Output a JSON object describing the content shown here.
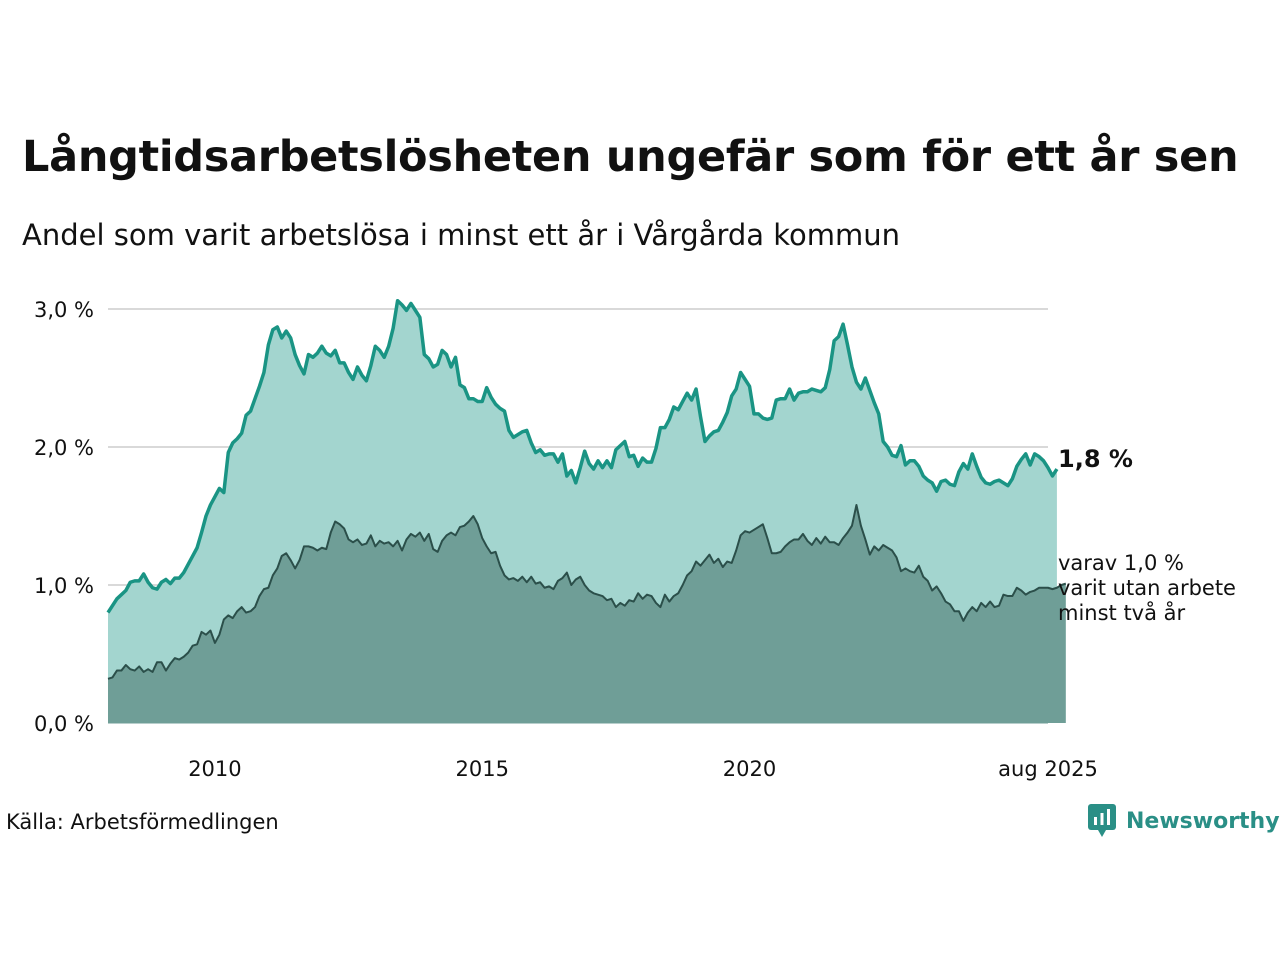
{
  "title": "Långtidsarbetslösheten ungefär som för ett år sen",
  "subtitle": "Andel som varit arbetslösa i minst ett år i Vårgårda kommun",
  "source": "Källa: Arbetsförmedlingen",
  "brand": "Newsworthy",
  "colors": {
    "main_line": "#1a9484",
    "main_fill": "#a3d5cf",
    "sub_line": "#2b4f4a",
    "sub_fill": "#6f9e97",
    "grid": "#d9d9d9"
  },
  "chart_data": {
    "type": "area",
    "x_start": "2008-01",
    "x_end": "2025-08",
    "x_step": "month",
    "ylim": [
      0,
      3
    ],
    "y_ticks": [
      0,
      1,
      2,
      3
    ],
    "y_tick_labels": [
      "0,0 %",
      "1,0 %",
      "2,0 %",
      "3,0 %"
    ],
    "x_ticks": [
      "2010-01",
      "2015-01",
      "2020-01",
      "2025-08"
    ],
    "x_tick_labels": [
      "2010",
      "2015",
      "2020",
      "aug 2025"
    ],
    "grid": true,
    "series": [
      {
        "key": "total",
        "end_label": "1,8 %",
        "values": [
          0.8,
          0.85,
          0.9,
          0.93,
          0.96,
          1.02,
          1.03,
          1.03,
          1.08,
          1.02,
          0.98,
          0.97,
          1.02,
          1.04,
          1.01,
          1.05,
          1.05,
          1.09,
          1.15,
          1.21,
          1.27,
          1.38,
          1.5,
          1.58,
          1.64,
          1.7,
          1.67,
          1.96,
          2.03,
          2.06,
          2.1,
          2.23,
          2.26,
          2.35,
          2.44,
          2.54,
          2.74,
          2.85,
          2.87,
          2.79,
          2.84,
          2.79,
          2.67,
          2.59,
          2.53,
          2.67,
          2.65,
          2.68,
          2.73,
          2.68,
          2.66,
          2.7,
          2.61,
          2.61,
          2.54,
          2.49,
          2.58,
          2.52,
          2.48,
          2.59,
          2.73,
          2.7,
          2.65,
          2.73,
          2.86,
          3.06,
          3.03,
          2.99,
          3.04,
          2.99,
          2.94,
          2.67,
          2.64,
          2.58,
          2.6,
          2.7,
          2.67,
          2.58,
          2.65,
          2.45,
          2.43,
          2.35,
          2.35,
          2.33,
          2.33,
          2.43,
          2.36,
          2.31,
          2.28,
          2.26,
          2.12,
          2.07,
          2.09,
          2.11,
          2.12,
          2.03,
          1.96,
          1.98,
          1.94,
          1.95,
          1.95,
          1.89,
          1.95,
          1.79,
          1.83,
          1.74,
          1.85,
          1.97,
          1.88,
          1.84,
          1.9,
          1.85,
          1.9,
          1.85,
          1.98,
          2.01,
          2.04,
          1.93,
          1.94,
          1.86,
          1.92,
          1.89,
          1.89,
          1.99,
          2.14,
          2.14,
          2.2,
          2.29,
          2.27,
          2.33,
          2.39,
          2.34,
          2.42,
          2.22,
          2.04,
          2.08,
          2.11,
          2.12,
          2.18,
          2.25,
          2.37,
          2.42,
          2.54,
          2.49,
          2.44,
          2.24,
          2.24,
          2.21,
          2.2,
          2.21,
          2.34,
          2.35,
          2.35,
          2.42,
          2.34,
          2.39,
          2.4,
          2.4,
          2.42,
          2.41,
          2.4,
          2.43,
          2.56,
          2.77,
          2.8,
          2.89,
          2.74,
          2.58,
          2.47,
          2.42,
          2.5,
          2.41,
          2.32,
          2.24,
          2.04,
          2.0,
          1.94,
          1.93,
          2.01,
          1.87,
          1.9,
          1.9,
          1.86,
          1.79,
          1.76,
          1.74,
          1.68,
          1.75,
          1.76,
          1.73,
          1.72,
          1.82,
          1.88,
          1.84,
          1.95,
          1.86,
          1.78,
          1.74,
          1.73,
          1.75,
          1.76,
          1.74,
          1.72,
          1.77,
          1.86,
          1.91,
          1.95,
          1.87,
          1.95,
          1.93,
          1.9,
          1.85,
          1.79,
          1.84
        ]
      },
      {
        "key": "two_years",
        "end_label": [
          "varav 1,0 %",
          "varit utan arbete",
          "minst två år"
        ],
        "values": [
          0.32,
          0.33,
          0.38,
          0.38,
          0.42,
          0.39,
          0.38,
          0.41,
          0.37,
          0.39,
          0.37,
          0.44,
          0.44,
          0.38,
          0.43,
          0.47,
          0.46,
          0.48,
          0.51,
          0.56,
          0.57,
          0.66,
          0.64,
          0.67,
          0.58,
          0.64,
          0.75,
          0.78,
          0.76,
          0.81,
          0.84,
          0.8,
          0.81,
          0.84,
          0.92,
          0.97,
          0.98,
          1.07,
          1.12,
          1.21,
          1.23,
          1.18,
          1.12,
          1.18,
          1.28,
          1.28,
          1.27,
          1.25,
          1.27,
          1.26,
          1.38,
          1.46,
          1.44,
          1.41,
          1.33,
          1.31,
          1.33,
          1.29,
          1.3,
          1.36,
          1.28,
          1.32,
          1.3,
          1.31,
          1.28,
          1.32,
          1.25,
          1.33,
          1.37,
          1.35,
          1.38,
          1.32,
          1.37,
          1.26,
          1.24,
          1.32,
          1.36,
          1.38,
          1.36,
          1.42,
          1.43,
          1.46,
          1.5,
          1.44,
          1.34,
          1.28,
          1.23,
          1.24,
          1.14,
          1.07,
          1.04,
          1.05,
          1.03,
          1.06,
          1.02,
          1.06,
          1.01,
          1.02,
          0.98,
          0.99,
          0.97,
          1.03,
          1.05,
          1.09,
          1.0,
          1.04,
          1.06,
          1.0,
          0.96,
          0.94,
          0.93,
          0.92,
          0.89,
          0.9,
          0.84,
          0.87,
          0.85,
          0.89,
          0.88,
          0.94,
          0.9,
          0.93,
          0.92,
          0.87,
          0.84,
          0.93,
          0.88,
          0.92,
          0.94,
          1.0,
          1.07,
          1.1,
          1.17,
          1.14,
          1.18,
          1.22,
          1.16,
          1.19,
          1.13,
          1.17,
          1.16,
          1.25,
          1.36,
          1.39,
          1.38,
          1.4,
          1.42,
          1.44,
          1.34,
          1.23,
          1.23,
          1.24,
          1.28,
          1.31,
          1.33,
          1.33,
          1.37,
          1.32,
          1.29,
          1.34,
          1.3,
          1.35,
          1.31,
          1.31,
          1.29,
          1.34,
          1.38,
          1.43,
          1.58,
          1.43,
          1.33,
          1.22,
          1.28,
          1.25,
          1.29,
          1.27,
          1.25,
          1.2,
          1.1,
          1.12,
          1.1,
          1.09,
          1.14,
          1.06,
          1.03,
          0.96,
          0.99,
          0.94,
          0.88,
          0.86,
          0.81,
          0.81,
          0.74,
          0.8,
          0.84,
          0.81,
          0.87,
          0.84,
          0.88,
          0.84,
          0.85,
          0.93,
          0.92,
          0.92,
          0.98,
          0.96,
          0.93,
          0.95,
          0.96,
          0.98,
          0.98,
          0.98,
          0.97,
          0.98,
          1.0,
          1.01
        ]
      }
    ]
  }
}
